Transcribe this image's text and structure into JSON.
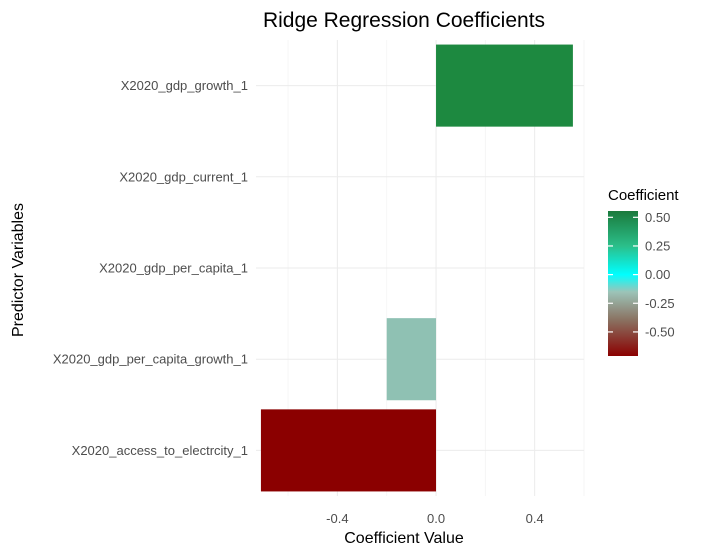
{
  "chart_data": {
    "type": "bar",
    "orientation": "horizontal",
    "title": "Ridge Regression Coefficients",
    "xlabel": "Coefficient Value",
    "ylabel": "Predictor Variables",
    "categories": [
      "X2020_access_to_electrcity_1",
      "X2020_gdp_per_capita_growth_1",
      "X2020_gdp_per_capita_1",
      "X2020_gdp_current_1",
      "X2020_gdp_growth_1"
    ],
    "values": [
      -0.71,
      -0.2,
      0.0,
      0.0,
      0.555
    ],
    "xlim": [
      -0.73,
      0.6
    ],
    "xticks": [
      -0.4,
      0.0,
      0.4
    ],
    "xtick_labels": [
      "-0.4",
      "0.0",
      "0.4"
    ],
    "grid": true,
    "legend": {
      "title": "Coefficient",
      "placement": "right",
      "range": [
        -0.71,
        0.555
      ],
      "ticks": [
        0.5,
        0.25,
        0.0,
        -0.25,
        -0.5
      ],
      "tick_labels": [
        "0.50",
        "0.25",
        "0.00",
        "-0.25",
        "-0.50"
      ],
      "color_stops": [
        {
          "value": -0.71,
          "color": "#8b0000"
        },
        {
          "value": -0.4,
          "color": "#8a7060"
        },
        {
          "value": -0.15,
          "color": "#9cc4b8"
        },
        {
          "value": 0.0,
          "color": "#00ffff"
        },
        {
          "value": 0.25,
          "color": "#2bbf8a"
        },
        {
          "value": 0.555,
          "color": "#1a7a3c"
        }
      ]
    },
    "bar_colors": [
      "#8b0000",
      "#8fc1b3",
      "#00ffff",
      "#00ffff",
      "#1d8940"
    ]
  }
}
